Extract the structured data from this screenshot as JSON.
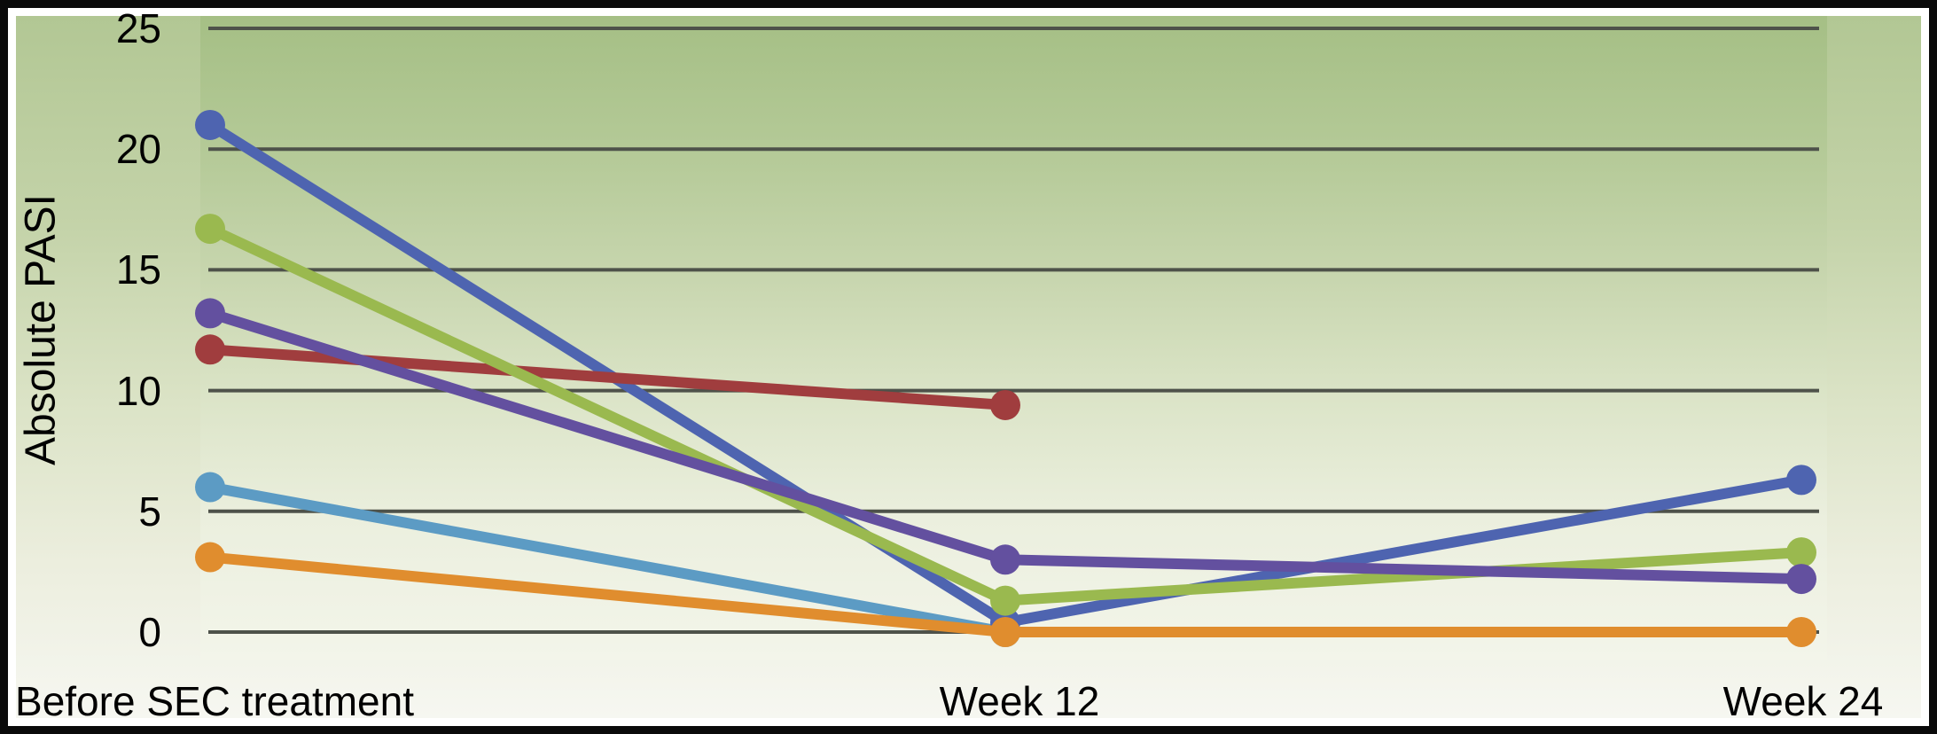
{
  "chart_data": {
    "type": "line",
    "title": "",
    "ylabel": "Absolute PASI",
    "xlabel": "",
    "categories": [
      "Before SEC treatment",
      "Week 12",
      "Week 24"
    ],
    "y_ticks": [
      25,
      20,
      15,
      10,
      5,
      0
    ],
    "ylim": [
      0,
      25
    ],
    "grid": "horizontal gridlines every 5",
    "legend": "none",
    "gridline_color": "#4E524A",
    "frame_color": "#0A0A0A",
    "background": {
      "plot_top": "#A5BF85",
      "plot_bottom": "#F3F5EA",
      "margin_top": "#B2C794",
      "margin_bottom": "#F6F7F1"
    },
    "marker": "filled circle",
    "series": [
      {
        "name": "patient-lightblue",
        "color": "#5C9BC4",
        "values": [
          6.0,
          0,
          null
        ]
      },
      {
        "name": "patient-blue",
        "color": "#4E64B0",
        "values": [
          21.0,
          0.4,
          6.3
        ]
      },
      {
        "name": "patient-darkred",
        "color": "#A03D3E",
        "values": [
          11.7,
          9.4,
          null
        ]
      },
      {
        "name": "patient-green",
        "color": "#9AB94F",
        "values": [
          16.7,
          1.3,
          3.3
        ]
      },
      {
        "name": "patient-purple",
        "color": "#63509F",
        "values": [
          13.2,
          3.0,
          2.2
        ]
      },
      {
        "name": "patient-orange",
        "color": "#E08D2E",
        "values": [
          3.1,
          0,
          0
        ]
      }
    ]
  }
}
